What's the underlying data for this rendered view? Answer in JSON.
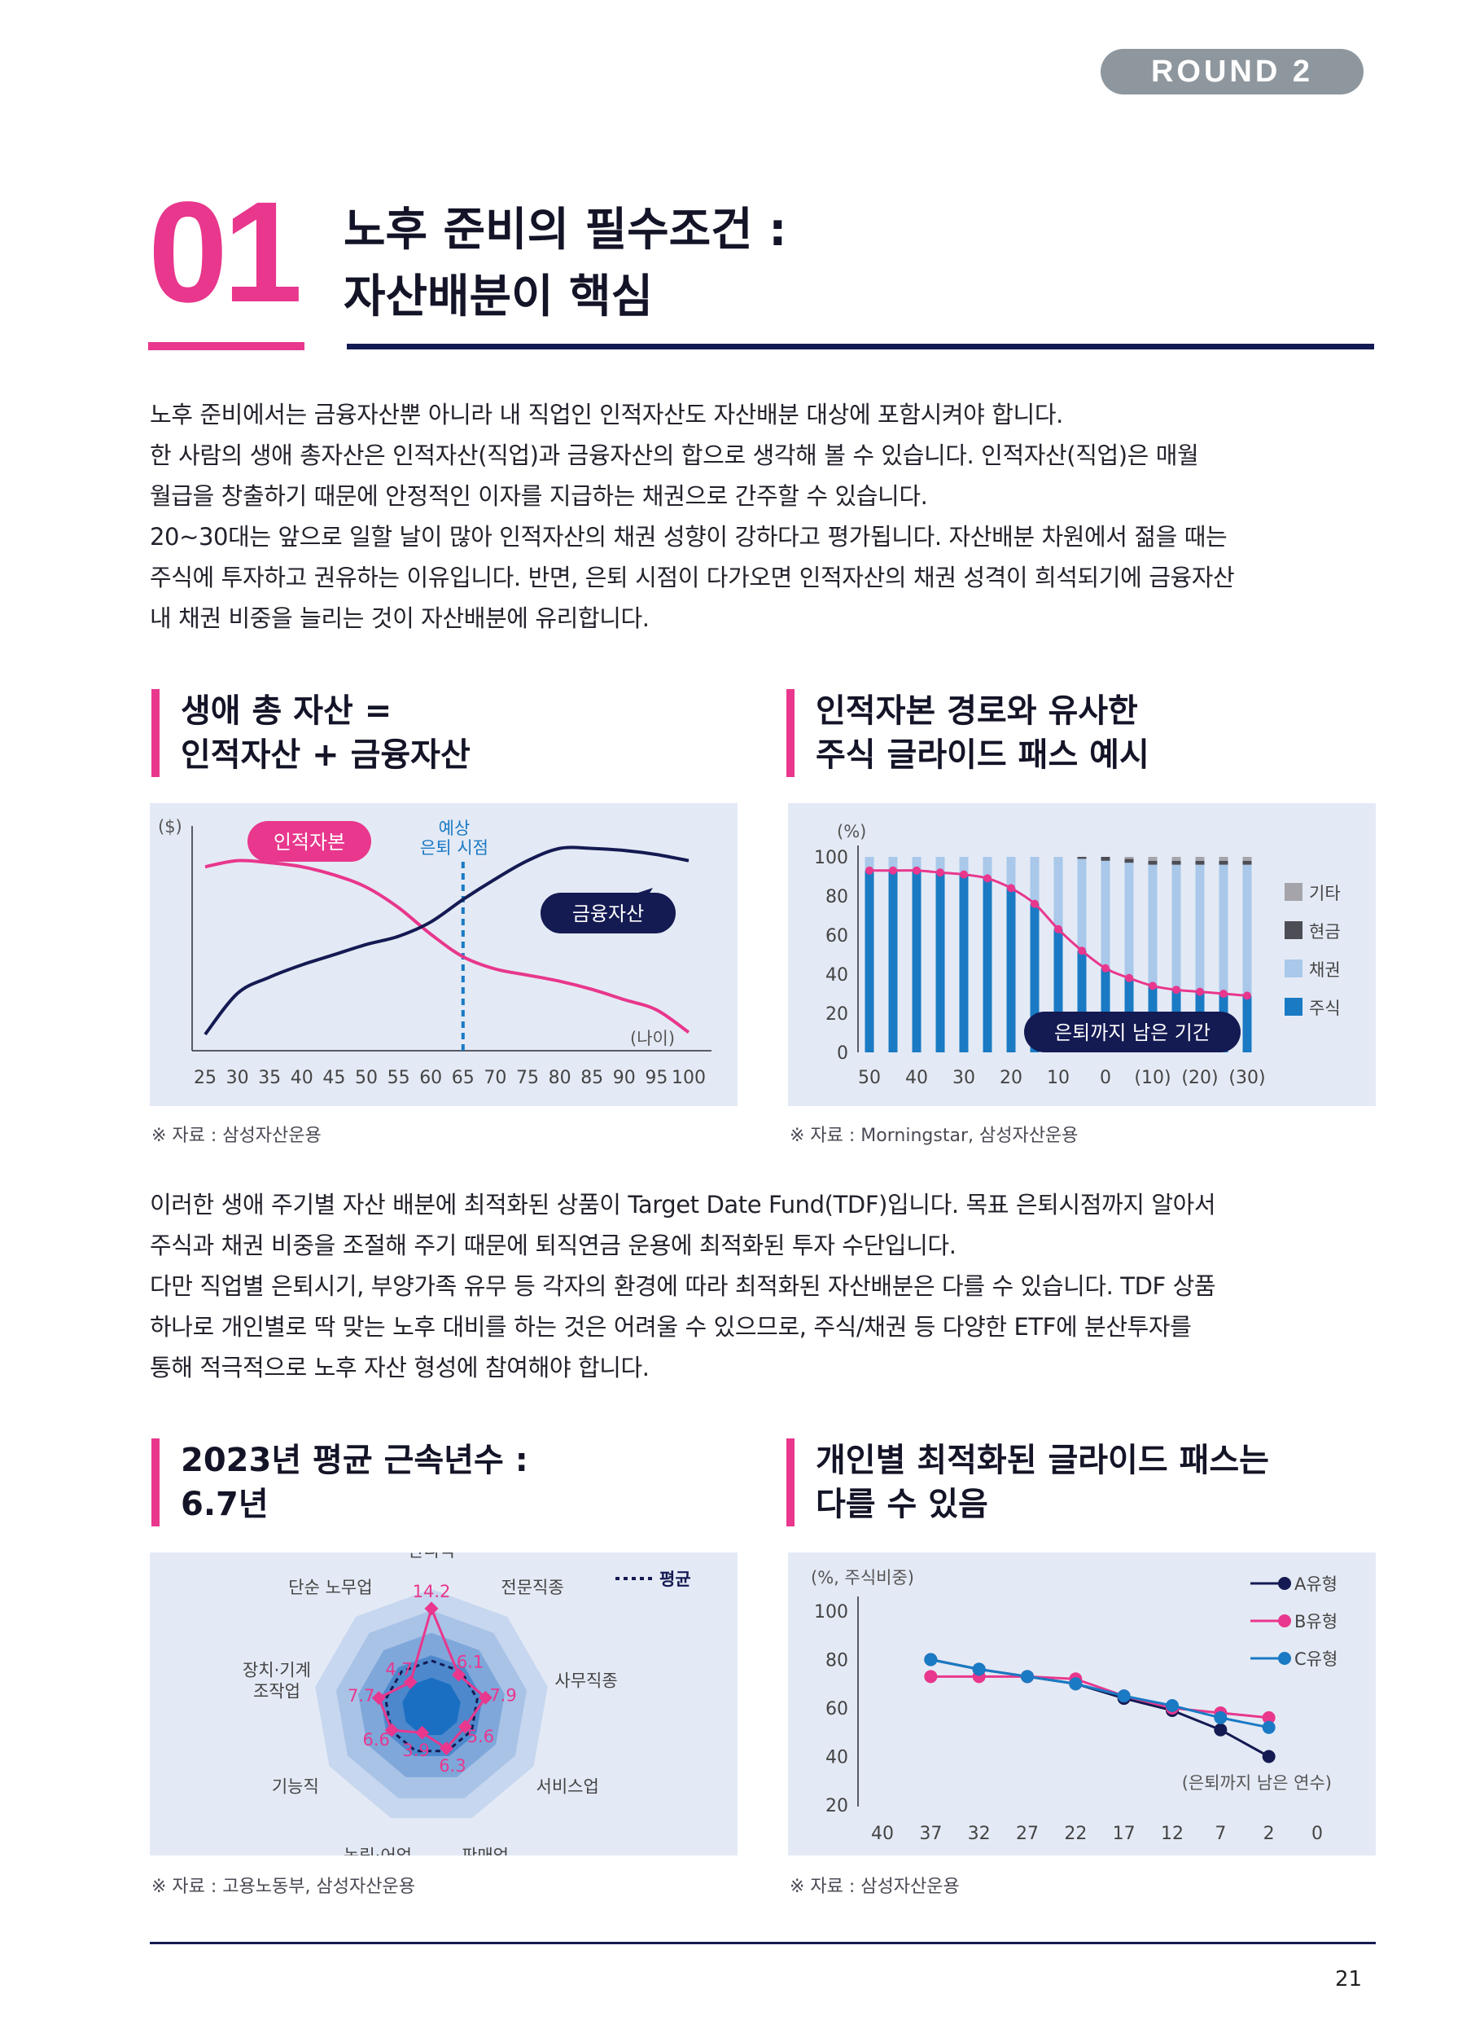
{
  "header": {
    "round_label": "ROUND 2"
  },
  "section": {
    "number": "01",
    "title_line1": "노후 준비의 필수조건 :",
    "title_line2": "자산배분이 핵심"
  },
  "intro": {
    "lines": [
      "노후 준비에서는 금융자산뿐 아니라 내 직업인 인적자산도 자산배분 대상에 포함시켜야 합니다.",
      "한 사람의 생애 총자산은 인적자산(직업)과 금융자산의 합으로 생각해 볼 수 있습니다. 인적자산(직업)은 매월",
      "월급을 창출하기 때문에 안정적인 이자를 지급하는 채권으로 간주할 수 있습니다.",
      "20~30대는 앞으로 일할 날이 많아 인적자산의 채권 성향이 강하다고 평가됩니다. 자산배분 차원에서 젊을 때는",
      "주식에 투자하고 권유하는 이유입니다. 반면, 은퇴 시점이 다가오면 인적자산의 채권 성격이 희석되기에 금융자산",
      "내 채권 비중을 늘리는 것이 자산배분에 유리합니다."
    ]
  },
  "middle": {
    "lines": [
      "이러한 생애 주기별 자산 배분에 최적화된 상품이 Target Date Fund(TDF)입니다. 목표 은퇴시점까지 알아서",
      "주식과 채권 비중을 조절해 주기 때문에 퇴직연금 운용에 최적화된 투자 수단입니다.",
      "다만 직업별 은퇴시기, 부양가족 유무 등 각자의 환경에 따라 최적화된 자산배분은 다를 수 있습니다. TDF 상품",
      "하나로 개인별로 딱 맞는 노후 대비를 하는 것은 어려울 수 있으므로, 주식/채권 등 다양한 ETF에 분산투자를",
      "통해 적극적으로 노후 자산 형성에 참여해야 합니다."
    ]
  },
  "colors": {
    "pink": "#e8378d",
    "navy": "#141a52",
    "blue": "#1a7ac4",
    "lightblue": "#a9c8ea",
    "panel": "#e4eaf5"
  },
  "chart_data": [
    {
      "id": "lifetime-assets",
      "type": "line",
      "heading_line1": "생애 총 자산 =",
      "heading_line2": "인적자산 + 금융자산",
      "unit_label": "($)",
      "x_label": "(나이)",
      "x": [
        25,
        30,
        35,
        40,
        45,
        50,
        55,
        60,
        65,
        70,
        75,
        80,
        85,
        90,
        95,
        100
      ],
      "series": [
        {
          "name": "인적자본",
          "values": [
            90,
            93,
            92,
            90,
            86,
            80,
            70,
            57,
            46,
            40,
            37,
            34,
            30,
            25,
            20,
            9
          ]
        },
        {
          "name": "금융자산",
          "values": [
            8,
            28,
            36,
            42,
            47,
            52,
            56,
            63,
            74,
            84,
            93,
            99,
            99,
            98,
            96,
            93
          ]
        }
      ],
      "ylim": [
        0,
        110
      ],
      "annotation": "예상\n은퇴 시점",
      "annotation_line1": "예상",
      "annotation_line2": "은퇴 시점",
      "retirement_age": 65,
      "source": "※ 자료 : 삼성자산운용"
    },
    {
      "id": "glide-path",
      "type": "bar",
      "stacked": true,
      "heading_line1": "인적자본 경로와 유사한",
      "heading_line2": "주식 글라이드 패스 예시",
      "unit_label": "(%)",
      "categories": [
        "50",
        "",
        "40",
        "",
        "30",
        "",
        "20",
        "",
        "10",
        "",
        "0",
        "",
        "(10)",
        "",
        "(20)",
        "",
        "(30)"
      ],
      "tick_labels": [
        "50",
        "40",
        "30",
        "20",
        "10",
        "0",
        "(10)",
        "(20)",
        "(30)"
      ],
      "series": [
        {
          "name": "주식",
          "values": [
            93,
            93,
            93,
            92,
            91,
            89,
            84,
            76,
            63,
            52,
            43,
            38,
            34,
            32,
            31,
            30,
            29
          ]
        },
        {
          "name": "채권",
          "values": [
            7,
            7,
            7,
            8,
            9,
            11,
            16,
            24,
            37,
            47,
            55,
            59,
            62,
            64,
            65,
            66,
            67
          ]
        },
        {
          "name": "현금",
          "values": [
            0,
            0,
            0,
            0,
            0,
            0,
            0,
            0,
            0,
            1,
            2,
            2,
            2,
            2,
            2,
            2,
            2
          ]
        },
        {
          "name": "기타",
          "values": [
            0,
            0,
            0,
            0,
            0,
            0,
            0,
            0,
            0,
            0,
            0,
            1,
            2,
            2,
            2,
            2,
            2
          ]
        }
      ],
      "legend": [
        "기타",
        "현금",
        "채권",
        "주식"
      ],
      "y_ticks": [
        0,
        20,
        40,
        60,
        80,
        100
      ],
      "ylim": [
        0,
        100
      ],
      "annotation": "은퇴까지 남은 기간",
      "source": "※ 자료 : Morningstar, 삼성자산운용"
    },
    {
      "id": "tenure-radar",
      "type": "radar",
      "heading_line1": "2023년 평균 근속년수 :",
      "heading_line2": "6.7년",
      "legend": "평균",
      "axes": [
        "관리직",
        "전문직종",
        "사무직종",
        "서비스업",
        "판매업",
        "농림·어업",
        "기능직",
        "장치·기계 조작업",
        "단순 노무업"
      ],
      "axis_label_lines": [
        [
          "관리직"
        ],
        [
          "전문직종"
        ],
        [
          "사무직종"
        ],
        [
          "서비스업"
        ],
        [
          "판매업"
        ],
        [
          "농림·어업"
        ],
        [
          "기능직"
        ],
        [
          "장치·기계",
          "조작업"
        ],
        [
          "단순 노무업"
        ]
      ],
      "values": [
        14.2,
        6.1,
        7.9,
        5.6,
        6.3,
        3.9,
        6.6,
        7.7,
        4.7
      ],
      "value_labels": [
        "14.2",
        "6.1",
        "7.9",
        "5.6",
        "6.3",
        "3.9",
        "6.6",
        "7.7",
        "4.7"
      ],
      "average": 6.7,
      "rmax": 17,
      "source": "※ 자료 : 고용노동부, 삼성자산운용"
    },
    {
      "id": "personal-glide",
      "type": "line",
      "heading_line1": "개인별 최적화된 글라이드 패스는",
      "heading_line2": "다를 수 있음",
      "unit_label": "(%, 주식비중)",
      "x_label": "(은퇴까지 남은 연수)",
      "x": [
        40,
        37,
        32,
        27,
        22,
        17,
        12,
        7,
        2,
        0
      ],
      "series": [
        {
          "name": "A유형",
          "values": [
            null,
            80,
            76,
            73,
            70,
            64,
            59,
            51,
            40,
            null
          ]
        },
        {
          "name": "B유형",
          "values": [
            null,
            73,
            73,
            73,
            72,
            65,
            60,
            58,
            56,
            null
          ]
        },
        {
          "name": "C유형",
          "values": [
            null,
            80,
            76,
            73,
            70,
            65,
            61,
            56,
            52,
            null
          ]
        }
      ],
      "y_ticks": [
        20,
        40,
        60,
        80,
        100
      ],
      "ylim": [
        20,
        100
      ],
      "source": "※ 자료 : 삼성자산운용"
    }
  ],
  "footer": {
    "page_number": "21"
  }
}
